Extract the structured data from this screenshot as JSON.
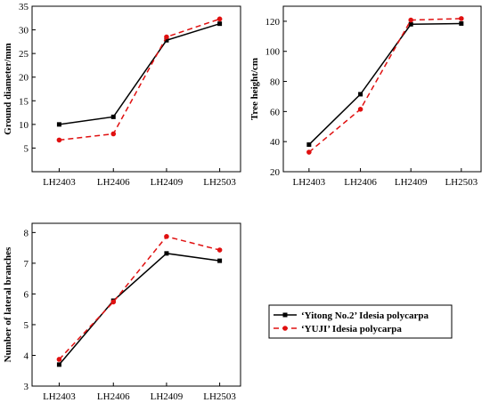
{
  "chart_data": [
    {
      "type": "line",
      "categories": [
        "LH2403",
        "LH2406",
        "LH2409",
        "LH2503"
      ],
      "ylabel": "Ground diameter/mm",
      "ylim": [
        0,
        35
      ],
      "yticks": [
        5,
        10,
        15,
        20,
        25,
        30,
        35
      ],
      "series": [
        {
          "name": "‘Yitong No.2’ Idesia polycarpa",
          "values": [
            10.0,
            11.6,
            27.8,
            31.3
          ]
        },
        {
          "name": "‘YUJI’  Idesia polycarpa",
          "values": [
            6.7,
            8.0,
            28.5,
            32.3
          ]
        }
      ]
    },
    {
      "type": "line",
      "categories": [
        "LH2403",
        "LH2406",
        "LH2409",
        "LH2503"
      ],
      "ylabel": "Tree height/cm",
      "ylim": [
        20,
        130
      ],
      "yticks": [
        20,
        40,
        60,
        80,
        100,
        120
      ],
      "series": [
        {
          "name": "‘Yitong No.2’ Idesia polycarpa",
          "values": [
            38,
            71.5,
            118,
            118.5
          ]
        },
        {
          "name": "‘YUJI’  Idesia polycarpa",
          "values": [
            33,
            61.5,
            120.8,
            121.8
          ]
        }
      ]
    },
    {
      "type": "line",
      "categories": [
        "LH2403",
        "LH2406",
        "LH2409",
        "LH2503"
      ],
      "ylabel": "Number of lateral branches",
      "ylim": [
        3,
        8.3
      ],
      "yticks": [
        3,
        4,
        5,
        6,
        7,
        8
      ],
      "series": [
        {
          "name": "‘Yitong No.2’ Idesia polycarpa",
          "values": [
            3.7,
            5.78,
            7.32,
            7.08
          ]
        },
        {
          "name": "‘YUJI’  Idesia polycarpa",
          "values": [
            3.87,
            5.74,
            7.87,
            7.43
          ]
        }
      ]
    }
  ],
  "legend": {
    "entries": [
      "‘Yitong No.2’ Idesia polycarpa",
      "‘YUJI’  Idesia polycarpa"
    ],
    "placement": "bottom-right"
  },
  "colors": {
    "series1": "#000000",
    "series2": "#e01010"
  }
}
